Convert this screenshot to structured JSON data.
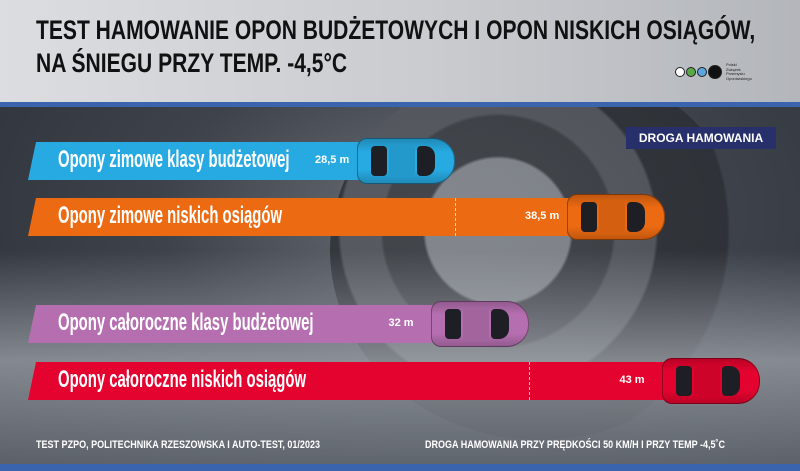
{
  "title_line1": "TEST HAMOWANIE OPON BUDŻETOWYCH I OPON NISKICH OSIĄGÓW,",
  "title_line2": "NA ŚNIEGU PRZY TEMP. -4,5°C",
  "logo": {
    "text": [
      "Polski",
      "Związek",
      "Przemysłu",
      "Oponiarskiego"
    ],
    "dot_colors": [
      "#ffffff",
      "#5aa84a",
      "#5aa6e0",
      "#111111"
    ]
  },
  "chart_data": {
    "type": "bar",
    "orientation": "horizontal",
    "legend": "DROGA HAMOWANIA",
    "categories": [
      "Opony zimowe klasy budżetowej",
      "Opony zimowe niskich osiągów",
      "Opony całoroczne klasy budżetowej",
      "Opony całoroczne niskich osiągów"
    ],
    "values": [
      28.5,
      38.5,
      32,
      43
    ],
    "value_labels": [
      "28,5 m",
      "38,5 m",
      "32 m",
      "43 m"
    ],
    "unit": "m",
    "colors": [
      "#27a9e1",
      "#ec6a12",
      "#b56fb0",
      "#e4032e"
    ]
  },
  "footer": {
    "source": "TEST PZPO, POLITECHNIKA RZESZOWSKA I AUTO-TEST, 01/2023",
    "note": "DROGA HAMOWANIA PRZY PRĘDKOŚCI 50 KM/H I PRZY TEMP -4,5˚C"
  }
}
